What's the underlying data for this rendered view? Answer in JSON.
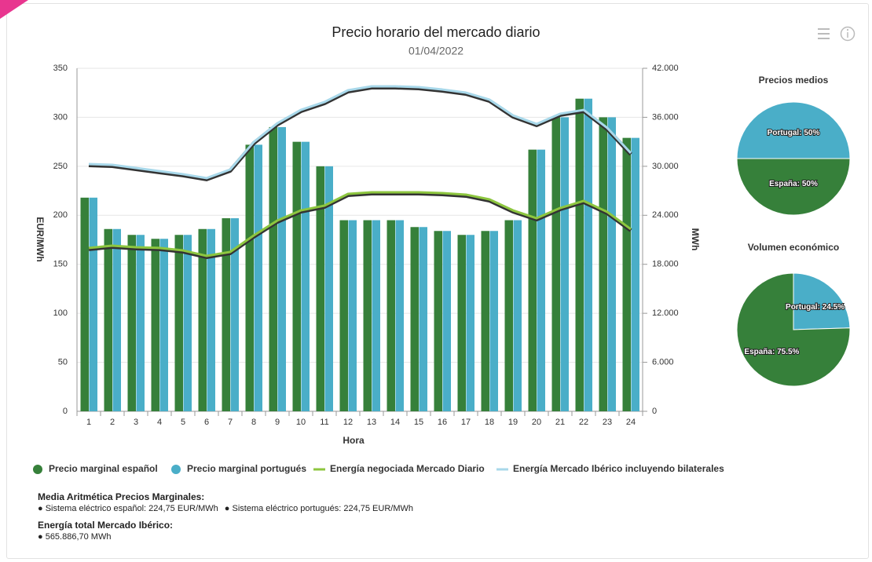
{
  "chart_data": [
    {
      "type": "combo",
      "title": "Precio horario del mercado diario",
      "subtitle": "01/04/2022",
      "x_label": "Hora",
      "y_label": "EUR/MWh",
      "y2_label": "MWh",
      "categories": [
        "1",
        "2",
        "3",
        "4",
        "5",
        "6",
        "7",
        "8",
        "9",
        "10",
        "11",
        "12",
        "13",
        "14",
        "15",
        "16",
        "17",
        "18",
        "19",
        "20",
        "21",
        "22",
        "23",
        "24"
      ],
      "ylim": [
        0,
        350
      ],
      "yticks": [
        0,
        50,
        100,
        150,
        200,
        250,
        300,
        350
      ],
      "y2lim": [
        0,
        42000
      ],
      "y2ticks": [
        0,
        {
          "value": 6000,
          "label": "6.000"
        },
        {
          "value": 12000,
          "label": "12.000"
        },
        {
          "value": 18000,
          "label": "18.000"
        },
        {
          "value": 24000,
          "label": "24.000"
        },
        {
          "value": 30000,
          "label": "30.000"
        },
        {
          "value": 36000,
          "label": "36.000"
        },
        {
          "value": 42000,
          "label": "42.000"
        }
      ],
      "grid": true,
      "series": [
        {
          "name": "Precio marginal español",
          "type": "bar",
          "color": "#36803a",
          "values": [
            218,
            186,
            180,
            176,
            180,
            186,
            197,
            272,
            290,
            275,
            250,
            195,
            195,
            195,
            188,
            184,
            180,
            184,
            195,
            267,
            300,
            319,
            300,
            279
          ]
        },
        {
          "name": "Precio marginal portugués",
          "type": "bar",
          "color": "#4aaec8",
          "values": [
            218,
            186,
            180,
            176,
            180,
            186,
            197,
            272,
            290,
            275,
            250,
            195,
            195,
            195,
            188,
            184,
            180,
            184,
            195,
            267,
            300,
            319,
            300,
            279
          ]
        },
        {
          "name": "Energía negociada Mercado Diario",
          "type": "line",
          "axis": "y2",
          "color": "#8dc63f",
          "values": [
            20000,
            20280,
            20090,
            20000,
            19700,
            19030,
            19510,
            21530,
            23350,
            24600,
            25180,
            26620,
            26810,
            26810,
            26810,
            26720,
            26530,
            25950,
            24600,
            23640,
            24890,
            25760,
            24410,
            22300
          ]
        },
        {
          "name": "Energía Mercado Ibérico incluyendo bilaterales",
          "type": "line",
          "axis": "y2",
          "color": "#a8d8ea",
          "values": [
            30270,
            30180,
            29790,
            29410,
            29030,
            28550,
            29600,
            32970,
            35270,
            36900,
            37870,
            39310,
            39790,
            39790,
            39690,
            39400,
            39020,
            38160,
            36230,
            35180,
            36430,
            36900,
            34700,
            31620
          ]
        }
      ]
    },
    {
      "type": "pie",
      "title": "Precios medios",
      "categories": [
        "Portugal",
        "España"
      ],
      "values": [
        50,
        50
      ],
      "value_labels": [
        "Portugal: 50%",
        "España: 50%"
      ],
      "colors": [
        "#4aaec8",
        "#36803a"
      ]
    },
    {
      "type": "pie",
      "title": "Volumen económico",
      "categories": [
        "Portugal",
        "España"
      ],
      "values": [
        24.5,
        75.5
      ],
      "value_labels": [
        "Portugal: 24.5%",
        "España: 75.5%"
      ],
      "colors": [
        "#4aaec8",
        "#36803a"
      ]
    }
  ],
  "footer": {
    "title1": "Media Aritmética Precios Marginales:",
    "items1": [
      "● Sistema eléctrico español: 224,75 EUR/MWh",
      "● Sistema eléctrico portugués: 224,75 EUR/MWh"
    ],
    "title2": "Energía total Mercado Ibérico:",
    "items2": [
      "● 565.886,70 MWh"
    ]
  }
}
